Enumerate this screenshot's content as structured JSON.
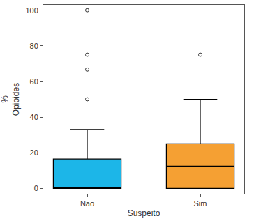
{
  "chart_data": {
    "type": "box",
    "x_label": "Suspeito",
    "y_label": "%\nOpioides",
    "categories": [
      "Não",
      "Sim"
    ],
    "boxes": [
      {
        "category": "Não",
        "min": 0,
        "q1": 0,
        "median": 0.5,
        "q3": 16.5,
        "max": 33,
        "outliers": [
          50,
          66.7,
          75,
          100
        ],
        "color": "#1cb6e8"
      },
      {
        "category": "Sim",
        "min": 0,
        "q1": 0,
        "median": 12.5,
        "q3": 25,
        "max": 50,
        "outliers": [
          75
        ],
        "color": "#f5a033"
      }
    ],
    "ylim": [
      -3,
      103
    ],
    "yticks": [
      0,
      20,
      40,
      60,
      80,
      100
    ],
    "grid": false
  }
}
